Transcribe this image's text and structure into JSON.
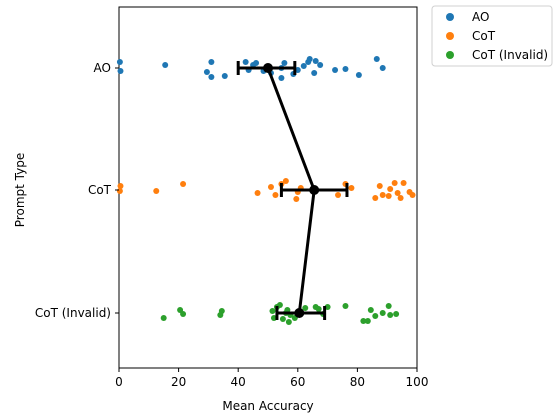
{
  "chart_data": {
    "type": "scatter",
    "xlabel": "Mean Accuracy",
    "ylabel": "Prompt Type",
    "xlim": [
      0,
      100
    ],
    "xticks": [
      0,
      20,
      40,
      60,
      80,
      100
    ],
    "categories": [
      "AO",
      "CoT",
      "CoT (Invalid)"
    ],
    "legend_position": "outside-top-right",
    "series": [
      {
        "name": "AO",
        "color": "#1f77b4",
        "category": "AO",
        "points": [
          [
            0.5,
            0.03
          ],
          [
            0.3,
            -0.06
          ],
          [
            15.5,
            -0.03
          ],
          [
            29.5,
            0.04
          ],
          [
            31,
            0.09
          ],
          [
            31,
            -0.06
          ],
          [
            35.5,
            0.08
          ],
          [
            42.5,
            -0.06
          ],
          [
            43.5,
            0.02
          ],
          [
            45,
            -0.03
          ],
          [
            46,
            -0.05
          ],
          [
            48.5,
            0.03
          ],
          [
            51,
            0.05
          ],
          [
            54.5,
            0.1
          ],
          [
            54.5,
            0.0
          ],
          [
            55.5,
            -0.05
          ],
          [
            58.5,
            0.06
          ],
          [
            60,
            0.02
          ],
          [
            62,
            -0.02
          ],
          [
            63.5,
            -0.06
          ],
          [
            64,
            -0.09
          ],
          [
            65.5,
            0.05
          ],
          [
            66,
            -0.07
          ],
          [
            67.5,
            -0.03
          ],
          [
            72.5,
            0.02
          ],
          [
            76,
            0.01
          ],
          [
            80.5,
            0.07
          ],
          [
            86.5,
            -0.09
          ],
          [
            88.5,
            0.0
          ]
        ]
      },
      {
        "name": "CoT",
        "color": "#ff7f0e",
        "category": "CoT",
        "points": [
          [
            0.3,
            0.01
          ],
          [
            0.5,
            -0.04
          ],
          [
            12.5,
            0.01
          ],
          [
            21.5,
            -0.06
          ],
          [
            46.5,
            0.03
          ],
          [
            51,
            -0.03
          ],
          [
            52.5,
            0.05
          ],
          [
            54.5,
            -0.06
          ],
          [
            56,
            -0.09
          ],
          [
            59.5,
            0.09
          ],
          [
            60,
            0.02
          ],
          [
            61,
            -0.02
          ],
          [
            73.5,
            0.05
          ],
          [
            76,
            -0.06
          ],
          [
            78,
            -0.02
          ],
          [
            86,
            0.08
          ],
          [
            87.5,
            -0.04
          ],
          [
            88.5,
            0.05
          ],
          [
            90.5,
            0.06
          ],
          [
            91,
            -0.01
          ],
          [
            92.5,
            -0.07
          ],
          [
            93.5,
            0.03
          ],
          [
            94.5,
            0.08
          ],
          [
            95.5,
            -0.07
          ],
          [
            97.5,
            0.02
          ],
          [
            98.5,
            0.05
          ]
        ]
      },
      {
        "name": "CoT (Invalid)",
        "color": "#2ca02c",
        "category": "CoT (Invalid)",
        "points": [
          [
            15,
            0.05
          ],
          [
            20.5,
            -0.03
          ],
          [
            21.5,
            0.01
          ],
          [
            34,
            0.02
          ],
          [
            34.5,
            -0.02
          ],
          [
            51.5,
            -0.02
          ],
          [
            52,
            0.05
          ],
          [
            53,
            -0.06
          ],
          [
            54,
            -0.08
          ],
          [
            55,
            0.06
          ],
          [
            56,
            0.0
          ],
          [
            56.5,
            -0.03
          ],
          [
            57,
            0.09
          ],
          [
            57.5,
            0.02
          ],
          [
            59,
            0.05
          ],
          [
            61,
            0.0
          ],
          [
            62.5,
            -0.05
          ],
          [
            66,
            -0.06
          ],
          [
            67,
            -0.04
          ],
          [
            68.5,
            0.01
          ],
          [
            70,
            -0.06
          ],
          [
            76,
            -0.07
          ],
          [
            82,
            0.08
          ],
          [
            83.5,
            0.08
          ],
          [
            84.5,
            -0.03
          ],
          [
            86,
            0.03
          ],
          [
            88.5,
            0.0
          ],
          [
            90.5,
            -0.07
          ],
          [
            91,
            0.02
          ],
          [
            93,
            0.01
          ]
        ]
      }
    ],
    "mean_line": {
      "color": "#000000",
      "points": [
        {
          "category": "AO",
          "mean": 50,
          "error_low": 40,
          "error_high": 59
        },
        {
          "category": "CoT",
          "mean": 65.5,
          "error_low": 54.5,
          "error_high": 76.5
        },
        {
          "category": "CoT (Invalid)",
          "mean": 60.5,
          "error_low": 53,
          "error_high": 69
        }
      ]
    }
  }
}
